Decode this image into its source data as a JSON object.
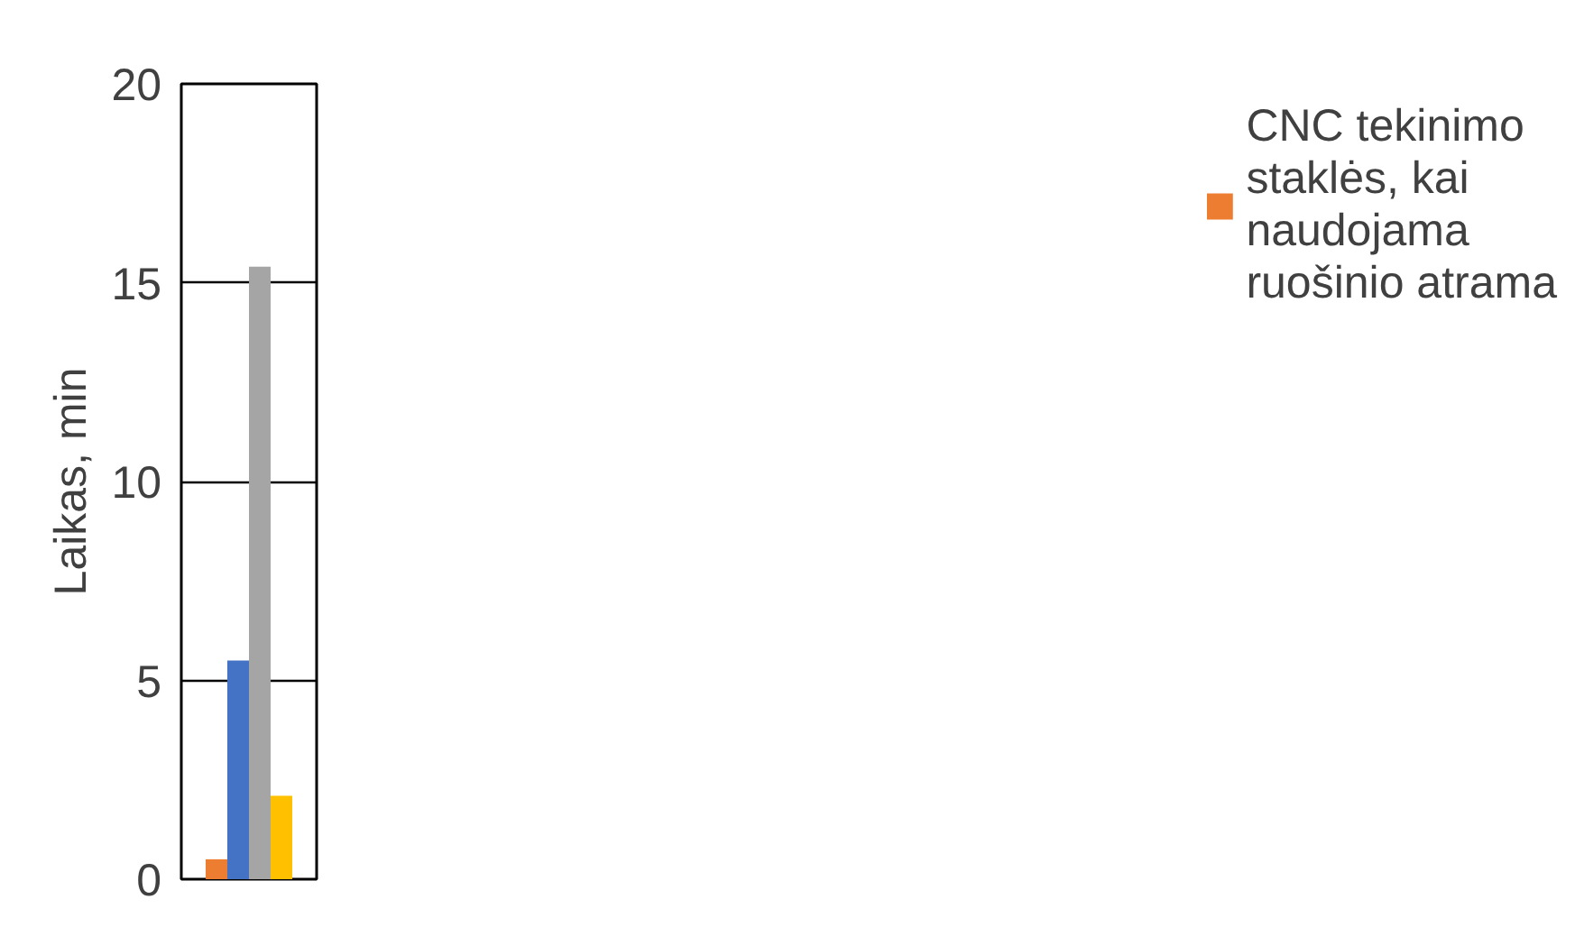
{
  "chart_data": {
    "type": "bar",
    "ylabel": "Laikas, min",
    "categories": [
      null
    ],
    "series": [
      {
        "name": "CNC tekinimo staklės, kai naudojama ruošinio atrama",
        "color": "#ed7d31",
        "values": [
          0.5
        ]
      },
      {
        "color": "#4472c4",
        "values": [
          5.5
        ]
      },
      {
        "color": "#a5a5a5",
        "values": [
          15.4
        ]
      },
      {
        "color": "#ffc000",
        "values": [
          2.1
        ]
      }
    ],
    "ylim": [
      0,
      20
    ],
    "yticks": [
      0,
      5,
      10,
      15,
      20
    ],
    "grid": "y",
    "legend": "right"
  }
}
